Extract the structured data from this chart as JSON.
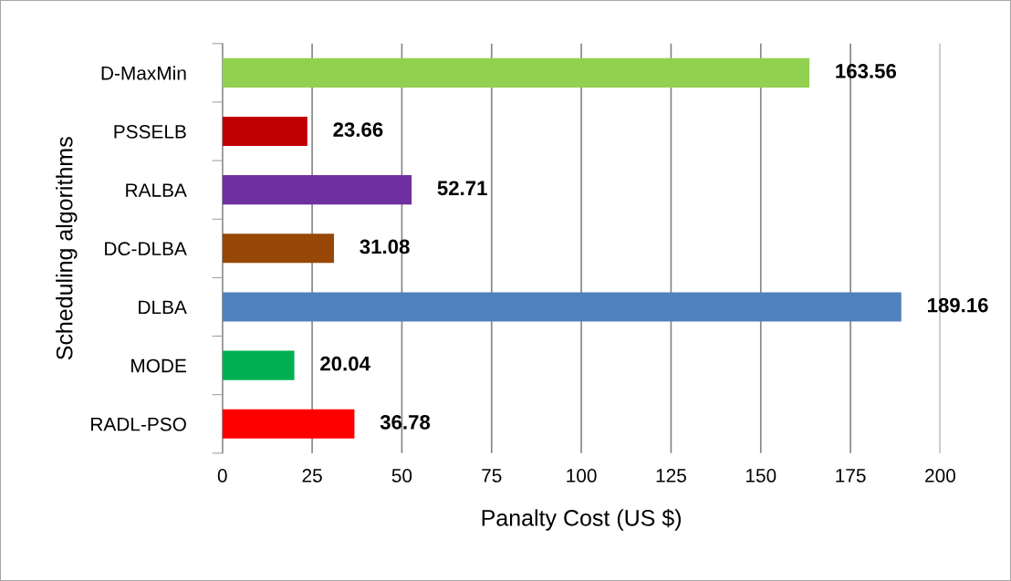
{
  "chart_data": {
    "type": "bar",
    "orientation": "horizontal",
    "xlabel": "Panalty Cost (US $)",
    "ylabel": "Scheduling algorithms",
    "categories": [
      "D-MaxMin",
      "PSSELB",
      "RALBA",
      "DC-DLBA",
      "DLBA",
      "MODE",
      "RADL-PSO"
    ],
    "values": [
      163.56,
      23.66,
      52.71,
      31.08,
      189.16,
      20.04,
      36.78
    ],
    "colors": [
      "#92d050",
      "#c00000",
      "#7030a0",
      "#974706",
      "#4f81bd",
      "#00b050",
      "#ff0000"
    ],
    "xlim": [
      0,
      200
    ],
    "xticks": [
      0,
      25,
      50,
      75,
      100,
      125,
      150,
      175,
      200
    ],
    "grid": "x",
    "data_labels": true
  }
}
